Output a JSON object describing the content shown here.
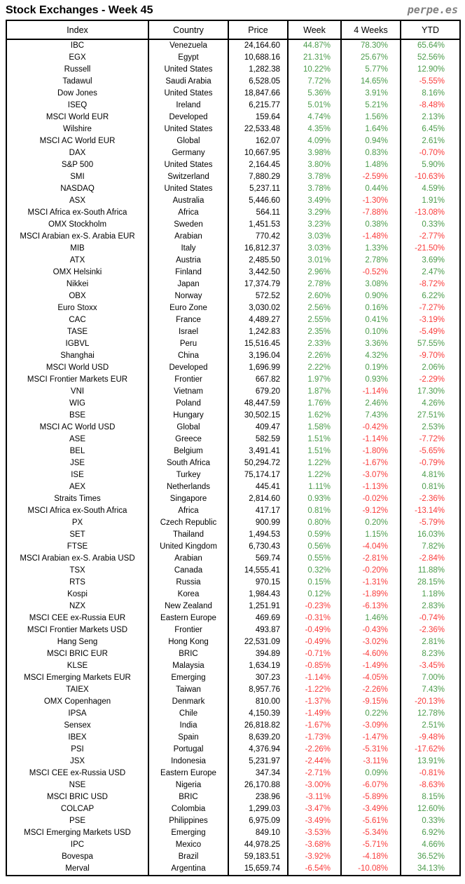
{
  "header": {
    "title": "Stock Exchanges - Week 45",
    "brand": "perpe.es"
  },
  "colors": {
    "positive": "#4c9c4c",
    "negative": "#fa3c3c",
    "text": "#000000",
    "brand_gray": "#7f7f7f",
    "border": "#000000"
  },
  "chart_data": {
    "type": "table",
    "title": "Stock Exchanges - Week 45",
    "columns": [
      "Index",
      "Country",
      "Price",
      "Week",
      "4 Weeks",
      "YTD"
    ],
    "rows": [
      [
        "IBC",
        "Venezuela",
        "24,164.60",
        "44.87%",
        "78.30%",
        "65.64%"
      ],
      [
        "EGX",
        "Egypt",
        "10,688.16",
        "21.31%",
        "25.67%",
        "52.56%"
      ],
      [
        "Russell",
        "United States",
        "1,282.38",
        "10.22%",
        "5.77%",
        "12.90%"
      ],
      [
        "Tadawul",
        "Saudi Arabia",
        "6,528.05",
        "7.72%",
        "14.65%",
        "-5.55%"
      ],
      [
        "Dow Jones",
        "United States",
        "18,847.66",
        "5.36%",
        "3.91%",
        "8.16%"
      ],
      [
        "ISEQ",
        "Ireland",
        "6,215.77",
        "5.01%",
        "5.21%",
        "-8.48%"
      ],
      [
        "MSCI World EUR",
        "Developed",
        "159.64",
        "4.74%",
        "1.56%",
        "2.13%"
      ],
      [
        "Wilshire",
        "United States",
        "22,533.48",
        "4.35%",
        "1.64%",
        "6.45%"
      ],
      [
        "MSCI AC World EUR",
        "Global",
        "162.07",
        "4.09%",
        "0.94%",
        "2.61%"
      ],
      [
        "DAX",
        "Germany",
        "10,667.95",
        "3.98%",
        "0.83%",
        "-0.70%"
      ],
      [
        "S&P 500",
        "United States",
        "2,164.45",
        "3.80%",
        "1.48%",
        "5.90%"
      ],
      [
        "SMI",
        "Switzerland",
        "7,880.29",
        "3.78%",
        "-2.59%",
        "-10.63%"
      ],
      [
        "NASDAQ",
        "United States",
        "5,237.11",
        "3.78%",
        "0.44%",
        "4.59%"
      ],
      [
        "ASX",
        "Australia",
        "5,446.60",
        "3.49%",
        "-1.30%",
        "1.91%"
      ],
      [
        "MSCI Africa ex-South Africa",
        "Africa",
        "564.11",
        "3.29%",
        "-7.88%",
        "-13.08%"
      ],
      [
        "OMX Stockholm",
        "Sweden",
        "1,451.53",
        "3.23%",
        "0.38%",
        "0.33%"
      ],
      [
        "MSCI Arabian ex-S. Arabia EUR",
        "Arabian",
        "770.42",
        "3.03%",
        "-1.48%",
        "-2.77%"
      ],
      [
        "MIB",
        "Italy",
        "16,812.37",
        "3.03%",
        "1.33%",
        "-21.50%"
      ],
      [
        "ATX",
        "Austria",
        "2,485.50",
        "3.01%",
        "2.78%",
        "3.69%"
      ],
      [
        "OMX Helsinki",
        "Finland",
        "3,442.50",
        "2.96%",
        "-0.52%",
        "2.47%"
      ],
      [
        "Nikkei",
        "Japan",
        "17,374.79",
        "2.78%",
        "3.08%",
        "-8.72%"
      ],
      [
        "OBX",
        "Norway",
        "572.52",
        "2.60%",
        "0.90%",
        "6.22%"
      ],
      [
        "Euro Stoxx",
        "Euro Zone",
        "3,030.02",
        "2.56%",
        "0.16%",
        "-7.27%"
      ],
      [
        "CAC",
        "France",
        "4,489.27",
        "2.55%",
        "0.41%",
        "-3.19%"
      ],
      [
        "TASE",
        "Israel",
        "1,242.83",
        "2.35%",
        "0.10%",
        "-5.49%"
      ],
      [
        "IGBVL",
        "Peru",
        "15,516.45",
        "2.33%",
        "3.36%",
        "57.55%"
      ],
      [
        "Shanghai",
        "China",
        "3,196.04",
        "2.26%",
        "4.32%",
        "-9.70%"
      ],
      [
        "MSCI World USD",
        "Developed",
        "1,696.99",
        "2.22%",
        "0.19%",
        "2.06%"
      ],
      [
        "MSCI Frontier Markets EUR",
        "Frontier",
        "667.82",
        "1.97%",
        "0.93%",
        "-2.29%"
      ],
      [
        "VNI",
        "Vietnam",
        "679.20",
        "1.87%",
        "-1.14%",
        "17.30%"
      ],
      [
        "WIG",
        "Poland",
        "48,447.59",
        "1.76%",
        "2.46%",
        "4.26%"
      ],
      [
        "BSE",
        "Hungary",
        "30,502.15",
        "1.62%",
        "7.43%",
        "27.51%"
      ],
      [
        "MSCI AC World USD",
        "Global",
        "409.47",
        "1.58%",
        "-0.42%",
        "2.53%"
      ],
      [
        "ASE",
        "Greece",
        "582.59",
        "1.51%",
        "-1.14%",
        "-7.72%"
      ],
      [
        "BEL",
        "Belgium",
        "3,491.41",
        "1.51%",
        "-1.80%",
        "-5.65%"
      ],
      [
        "JSE",
        "South Africa",
        "50,294.72",
        "1.22%",
        "-1.67%",
        "-0.79%"
      ],
      [
        "ISE",
        "Turkey",
        "75,174.17",
        "1.22%",
        "-3.07%",
        "4.81%"
      ],
      [
        "AEX",
        "Netherlands",
        "445.41",
        "1.11%",
        "-1.13%",
        "0.81%"
      ],
      [
        "Straits Times",
        "Singapore",
        "2,814.60",
        "0.93%",
        "-0.02%",
        "-2.36%"
      ],
      [
        "MSCI Africa ex-South Africa",
        "Africa",
        "417.17",
        "0.81%",
        "-9.12%",
        "-13.14%"
      ],
      [
        "PX",
        "Czech Republic",
        "900.99",
        "0.80%",
        "0.20%",
        "-5.79%"
      ],
      [
        "SET",
        "Thailand",
        "1,494.53",
        "0.59%",
        "1.15%",
        "16.03%"
      ],
      [
        "FTSE",
        "United Kingdom",
        "6,730.43",
        "0.56%",
        "-4.04%",
        "7.82%"
      ],
      [
        "MSCI Arabian ex-S. Arabia USD",
        "Arabian",
        "569.74",
        "0.55%",
        "-2.81%",
        "-2.84%"
      ],
      [
        "TSX",
        "Canada",
        "14,555.41",
        "0.32%",
        "-0.20%",
        "11.88%"
      ],
      [
        "RTS",
        "Russia",
        "970.15",
        "0.15%",
        "-1.31%",
        "28.15%"
      ],
      [
        "Kospi",
        "Korea",
        "1,984.43",
        "0.12%",
        "-1.89%",
        "1.18%"
      ],
      [
        "NZX",
        "New Zealand",
        "1,251.91",
        "-0.23%",
        "-6.13%",
        "2.83%"
      ],
      [
        "MSCI CEE ex-Russia EUR",
        "Eastern Europe",
        "469.69",
        "-0.31%",
        "1.46%",
        "-0.74%"
      ],
      [
        "MSCI Frontier Markets USD",
        "Frontier",
        "493.87",
        "-0.49%",
        "-0.43%",
        "-2.36%"
      ],
      [
        "Hang Seng",
        "Hong Kong",
        "22,531.09",
        "-0.49%",
        "-3.02%",
        "2.81%"
      ],
      [
        "MSCI BRIC EUR",
        "BRIC",
        "394.89",
        "-0.71%",
        "-4.60%",
        "8.23%"
      ],
      [
        "KLSE",
        "Malaysia",
        "1,634.19",
        "-0.85%",
        "-1.49%",
        "-3.45%"
      ],
      [
        "MSCI Emerging Markets EUR",
        "Emerging",
        "307.23",
        "-1.14%",
        "-4.05%",
        "7.00%"
      ],
      [
        "TAIEX",
        "Taiwan",
        "8,957.76",
        "-1.22%",
        "-2.26%",
        "7.43%"
      ],
      [
        "OMX Copenhagen",
        "Denmark",
        "810.00",
        "-1.37%",
        "-9.15%",
        "-20.13%"
      ],
      [
        "IPSA",
        "Chile",
        "4,150.39",
        "-1.49%",
        "0.22%",
        "12.78%"
      ],
      [
        "Sensex",
        "India",
        "26,818.82",
        "-1.67%",
        "-3.09%",
        "2.51%"
      ],
      [
        "IBEX",
        "Spain",
        "8,639.20",
        "-1.73%",
        "-1.47%",
        "-9.48%"
      ],
      [
        "PSI",
        "Portugal",
        "4,376.94",
        "-2.26%",
        "-5.31%",
        "-17.62%"
      ],
      [
        "JSX",
        "Indonesia",
        "5,231.97",
        "-2.44%",
        "-3.11%",
        "13.91%"
      ],
      [
        "MSCI CEE ex-Russia USD",
        "Eastern Europe",
        "347.34",
        "-2.71%",
        "0.09%",
        "-0.81%"
      ],
      [
        "NSE",
        "Nigeria",
        "26,170.88",
        "-3.00%",
        "-6.07%",
        "-8.63%"
      ],
      [
        "MSCI BRIC USD",
        "BRIC",
        "238.96",
        "-3.11%",
        "-5.89%",
        "8.15%"
      ],
      [
        "COLCAP",
        "Colombia",
        "1,299.03",
        "-3.47%",
        "-3.49%",
        "12.60%"
      ],
      [
        "PSE",
        "Philippines",
        "6,975.09",
        "-3.49%",
        "-5.61%",
        "0.33%"
      ],
      [
        "MSCI Emerging Markets USD",
        "Emerging",
        "849.10",
        "-3.53%",
        "-5.34%",
        "6.92%"
      ],
      [
        "IPC",
        "Mexico",
        "44,978.25",
        "-3.68%",
        "-5.71%",
        "4.66%"
      ],
      [
        "Bovespa",
        "Brazil",
        "59,183.51",
        "-3.92%",
        "-4.18%",
        "36.52%"
      ],
      [
        "Merval",
        "Argentina",
        "15,659.74",
        "-6.54%",
        "-10.08%",
        "34.13%"
      ]
    ]
  }
}
